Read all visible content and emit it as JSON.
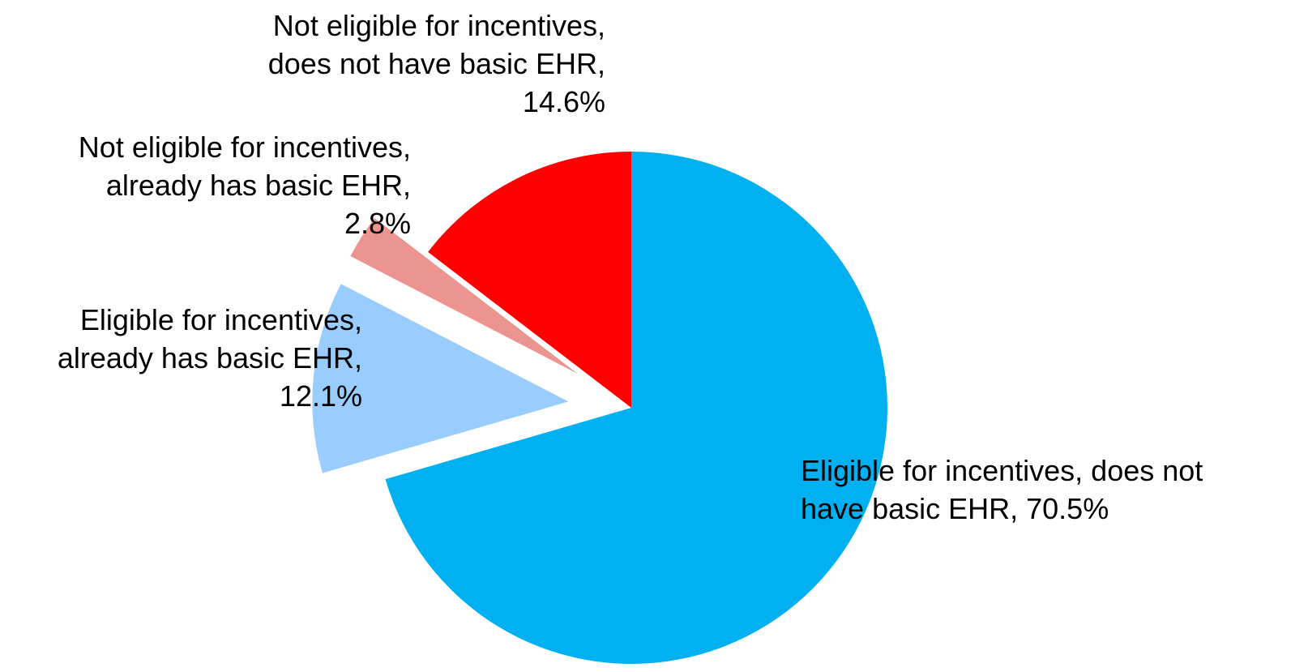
{
  "chart_data": {
    "type": "pie",
    "title": "",
    "start_angle_deg": 0,
    "direction": "clockwise",
    "slices": [
      {
        "name": "Eligible for incentives, does not have basic EHR",
        "value": 70.5,
        "value_label": "70.5%",
        "color": "#00b0f0",
        "exploded": false,
        "label_lines": [
          "Eligible for incentives, does not",
          "have basic EHR, 70.5%"
        ]
      },
      {
        "name": "Eligible for incentives, already has basic EHR",
        "value": 12.1,
        "value_label": "12.1%",
        "color": "#99ccff",
        "exploded": true,
        "label_lines": [
          "Eligible for incentives,",
          "already has basic EHR,",
          "12.1%"
        ]
      },
      {
        "name": "Not eligible for incentives, already has basic EHR",
        "value": 2.8,
        "value_label": "2.8%",
        "color": "#ec948f",
        "exploded": true,
        "label_lines": [
          "Not eligible for incentives,",
          "already has basic EHR,",
          "2.8%"
        ]
      },
      {
        "name": "Not eligible for incentives, does not have basic EHR",
        "value": 14.6,
        "value_label": "14.6%",
        "color": "#ff0000",
        "exploded": false,
        "label_lines": [
          "Not eligible for incentives,",
          "does not have basic EHR,",
          "14.6%"
        ]
      }
    ]
  }
}
